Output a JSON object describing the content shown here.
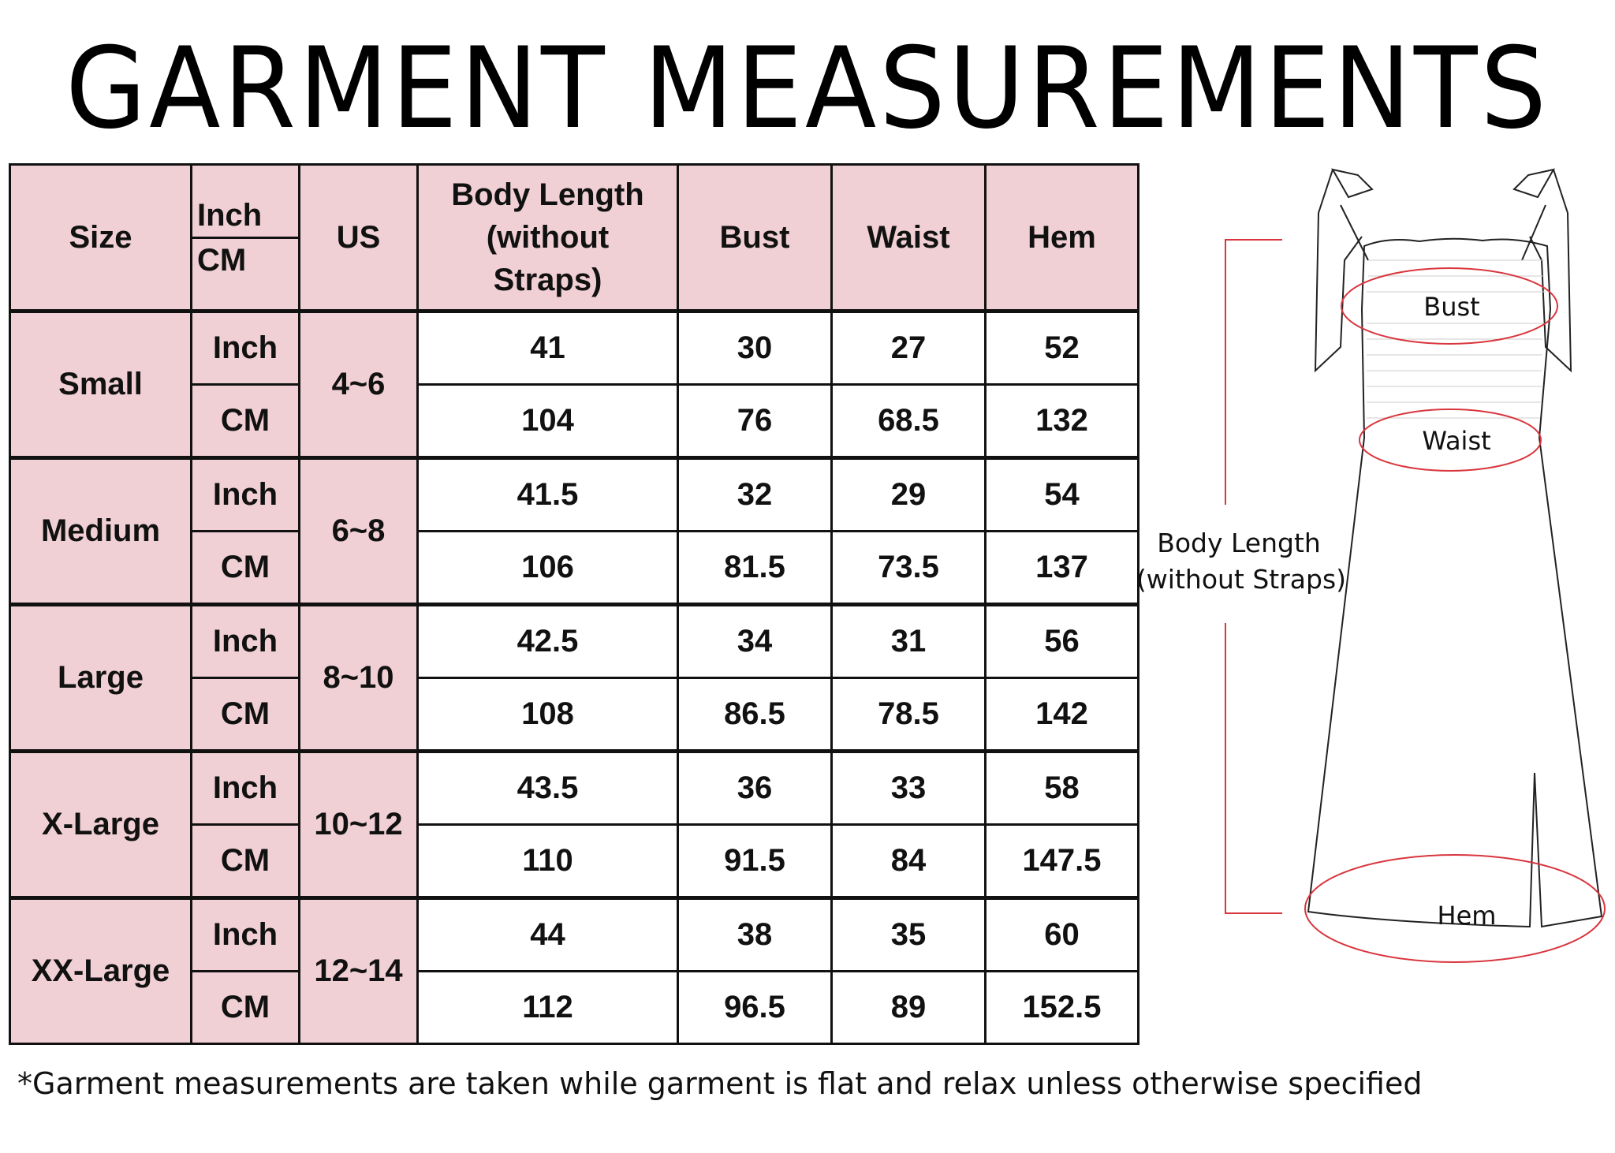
{
  "title": "GARMENT MEASUREMENTS",
  "table": {
    "headers": {
      "size": "Size",
      "unit_inch": "Inch",
      "unit_cm": "CM",
      "us": "US",
      "body_length": "Body Length (without Straps)",
      "bust": "Bust",
      "waist": "Waist",
      "hem": "Hem"
    },
    "sizes": [
      {
        "size": "Small",
        "us": "4~6",
        "inch": {
          "unit": "Inch",
          "body_length": "41",
          "bust": "30",
          "waist": "27",
          "hem": "52"
        },
        "cm": {
          "unit": "CM",
          "body_length": "104",
          "bust": "76",
          "waist": "68.5",
          "hem": "132"
        }
      },
      {
        "size": "Medium",
        "us": "6~8",
        "inch": {
          "unit": "Inch",
          "body_length": "41.5",
          "bust": "32",
          "waist": "29",
          "hem": "54"
        },
        "cm": {
          "unit": "CM",
          "body_length": "106",
          "bust": "81.5",
          "waist": "73.5",
          "hem": "137"
        }
      },
      {
        "size": "Large",
        "us": "8~10",
        "inch": {
          "unit": "Inch",
          "body_length": "42.5",
          "bust": "34",
          "waist": "31",
          "hem": "56"
        },
        "cm": {
          "unit": "CM",
          "body_length": "108",
          "bust": "86.5",
          "waist": "78.5",
          "hem": "142"
        }
      },
      {
        "size": "X-Large",
        "us": "10~12",
        "inch": {
          "unit": "Inch",
          "body_length": "43.5",
          "bust": "36",
          "waist": "33",
          "hem": "58"
        },
        "cm": {
          "unit": "CM",
          "body_length": "110",
          "bust": "91.5",
          "waist": "84",
          "hem": "147.5"
        }
      },
      {
        "size": "XX-Large",
        "us": "12~14",
        "inch": {
          "unit": "Inch",
          "body_length": "44",
          "bust": "38",
          "waist": "35",
          "hem": "60"
        },
        "cm": {
          "unit": "CM",
          "body_length": "112",
          "bust": "96.5",
          "waist": "89",
          "hem": "152.5"
        }
      }
    ]
  },
  "diagram": {
    "bust_label": "Bust",
    "waist_label": "Waist",
    "hem_label": "Hem",
    "length_label_line1": "Body Length",
    "length_label_line2": "(without Straps)",
    "measure_color": "#d9363e"
  },
  "colors": {
    "header_fill": "#f0d0d4",
    "border": "#111111"
  },
  "footnote": "*Garment measurements are taken while garment is flat and relax unless otherwise specified"
}
